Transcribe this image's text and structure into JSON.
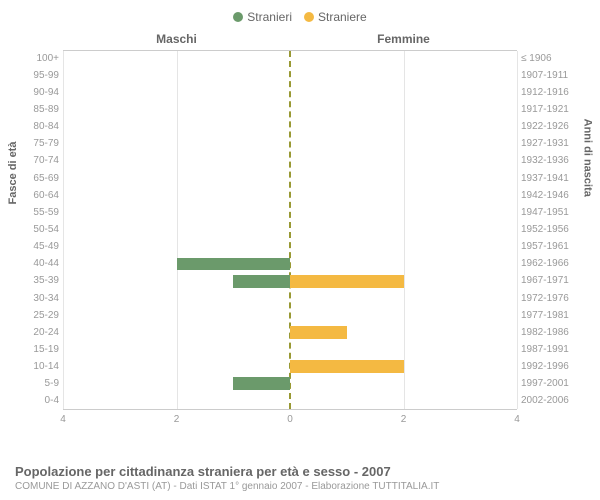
{
  "chart": {
    "type": "population-pyramid",
    "legend": [
      {
        "label": "Stranieri",
        "color": "#6b9a6b"
      },
      {
        "label": "Straniere",
        "color": "#f4b942"
      }
    ],
    "column_headers": {
      "left": "Maschi",
      "right": "Femmine"
    },
    "y_axis_left": {
      "title": "Fasce di età"
    },
    "y_axis_right": {
      "title": "Anni di nascita"
    },
    "x_axis": {
      "max": 4,
      "ticks": [
        4,
        2,
        0,
        2,
        4
      ]
    },
    "rows": [
      {
        "age": "100+",
        "birth": "≤ 1906",
        "male": 0,
        "female": 0
      },
      {
        "age": "95-99",
        "birth": "1907-1911",
        "male": 0,
        "female": 0
      },
      {
        "age": "90-94",
        "birth": "1912-1916",
        "male": 0,
        "female": 0
      },
      {
        "age": "85-89",
        "birth": "1917-1921",
        "male": 0,
        "female": 0
      },
      {
        "age": "80-84",
        "birth": "1922-1926",
        "male": 0,
        "female": 0
      },
      {
        "age": "75-79",
        "birth": "1927-1931",
        "male": 0,
        "female": 0
      },
      {
        "age": "70-74",
        "birth": "1932-1936",
        "male": 0,
        "female": 0
      },
      {
        "age": "65-69",
        "birth": "1937-1941",
        "male": 0,
        "female": 0
      },
      {
        "age": "60-64",
        "birth": "1942-1946",
        "male": 0,
        "female": 0
      },
      {
        "age": "55-59",
        "birth": "1947-1951",
        "male": 0,
        "female": 0
      },
      {
        "age": "50-54",
        "birth": "1952-1956",
        "male": 0,
        "female": 0
      },
      {
        "age": "45-49",
        "birth": "1957-1961",
        "male": 0,
        "female": 0
      },
      {
        "age": "40-44",
        "birth": "1962-1966",
        "male": 2,
        "female": 0
      },
      {
        "age": "35-39",
        "birth": "1967-1971",
        "male": 1,
        "female": 2
      },
      {
        "age": "30-34",
        "birth": "1972-1976",
        "male": 0,
        "female": 0
      },
      {
        "age": "25-29",
        "birth": "1977-1981",
        "male": 0,
        "female": 0
      },
      {
        "age": "20-24",
        "birth": "1982-1986",
        "male": 0,
        "female": 1
      },
      {
        "age": "15-19",
        "birth": "1987-1991",
        "male": 0,
        "female": 0
      },
      {
        "age": "10-14",
        "birth": "1992-1996",
        "male": 0,
        "female": 2
      },
      {
        "age": "5-9",
        "birth": "1997-2001",
        "male": 1,
        "female": 0
      },
      {
        "age": "0-4",
        "birth": "2002-2006",
        "male": 0,
        "female": 0
      }
    ],
    "colors": {
      "male_bar": "#6b9a6b",
      "female_bar": "#f4b942",
      "center_line": "#999933",
      "grid": "#e5e5e5",
      "background": "#ffffff"
    },
    "grid_positions_pct": [
      0,
      25,
      50,
      75,
      100
    ]
  },
  "title": "Popolazione per cittadinanza straniera per età e sesso - 2007",
  "subtitle": "COMUNE DI AZZANO D'ASTI (AT) - Dati ISTAT 1° gennaio 2007 - Elaborazione TUTTITALIA.IT"
}
